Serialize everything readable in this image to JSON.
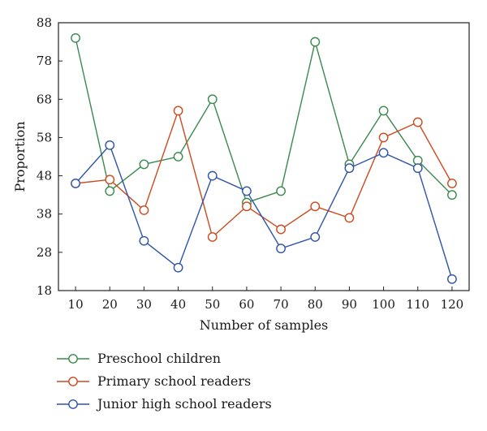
{
  "chart_data": {
    "type": "line",
    "xlabel": "Number of samples",
    "ylabel": "Proportion",
    "x": [
      10,
      20,
      30,
      40,
      50,
      60,
      70,
      80,
      90,
      100,
      110,
      120
    ],
    "yticks": [
      18,
      28,
      38,
      48,
      58,
      68,
      78,
      88
    ],
    "ylim": [
      18,
      88
    ],
    "grid": false,
    "legend_position": "bottom",
    "series": [
      {
        "name": "Preschool children",
        "color": "#3a8a4e",
        "values": [
          84,
          44,
          51,
          53,
          68,
          41,
          44,
          83,
          51,
          65,
          52,
          43
        ]
      },
      {
        "name": "Primary school readers",
        "color": "#cc4a1f",
        "values": [
          46,
          47,
          39,
          65,
          32,
          40,
          34,
          40,
          37,
          58,
          62,
          46
        ]
      },
      {
        "name": "Junior high school readers",
        "color": "#2f54a8",
        "values": [
          46,
          56,
          31,
          24,
          48,
          44,
          29,
          32,
          50,
          54,
          50,
          21
        ]
      }
    ]
  }
}
